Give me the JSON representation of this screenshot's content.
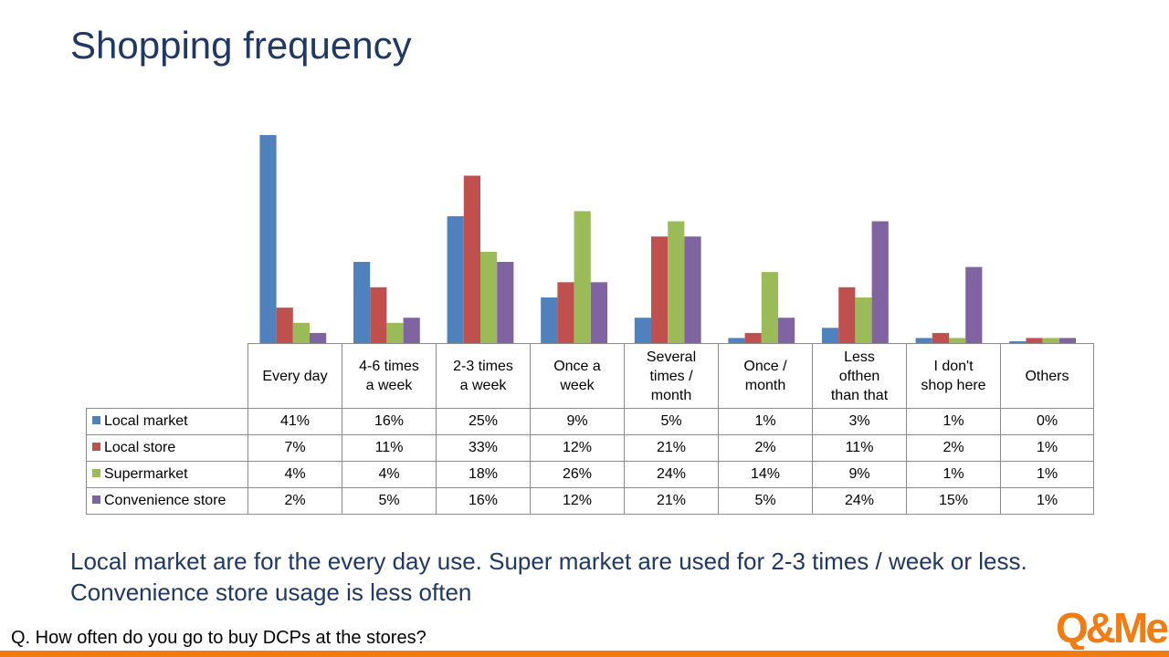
{
  "title": "Shopping frequency",
  "summary": "Local market are for the every day use. Super market are used for 2-3 times / week or less. Convenience store usage is less often",
  "question": "Q. How often do you go to buy DCPs at the stores?",
  "logo_text": "Q&Me",
  "colors": {
    "title": "#1f3864",
    "footer": "#f07c12",
    "logo": "#f07c12"
  },
  "chart_data": {
    "type": "bar",
    "categories": [
      "Every day",
      "4-6 times\na week",
      "2-3 times\na week",
      "Once a\nweek",
      "Several\ntimes /\nmonth",
      "Once /\nmonth",
      "Less\nofthen\nthan that",
      "I don't\nshop here",
      "Others"
    ],
    "series": [
      {
        "name": "Local market",
        "color": "#4f81bd",
        "values": [
          41,
          16,
          25,
          9,
          5,
          1,
          3,
          1,
          0
        ],
        "labels": [
          "41%",
          "16%",
          "25%",
          "9%",
          "5%",
          "1%",
          "3%",
          "1%",
          "0%"
        ]
      },
      {
        "name": "Local store",
        "color": "#c0504d",
        "values": [
          7,
          11,
          33,
          12,
          21,
          2,
          11,
          2,
          1
        ],
        "labels": [
          "7%",
          "11%",
          "33%",
          "12%",
          "21%",
          "2%",
          "11%",
          "2%",
          "1%"
        ]
      },
      {
        "name": "Supermarket",
        "color": "#9bbb59",
        "values": [
          4,
          4,
          18,
          26,
          24,
          14,
          9,
          1,
          1
        ],
        "labels": [
          "4%",
          "4%",
          "18%",
          "26%",
          "24%",
          "14%",
          "9%",
          "1%",
          "1%"
        ]
      },
      {
        "name": "Convenience store",
        "color": "#8064a2",
        "values": [
          2,
          5,
          16,
          12,
          21,
          5,
          24,
          15,
          1
        ],
        "labels": [
          "2%",
          "5%",
          "16%",
          "12%",
          "21%",
          "5%",
          "24%",
          "15%",
          "1%"
        ]
      }
    ],
    "ylim": [
      0,
      41
    ],
    "grid": false,
    "legend": "data-table"
  }
}
